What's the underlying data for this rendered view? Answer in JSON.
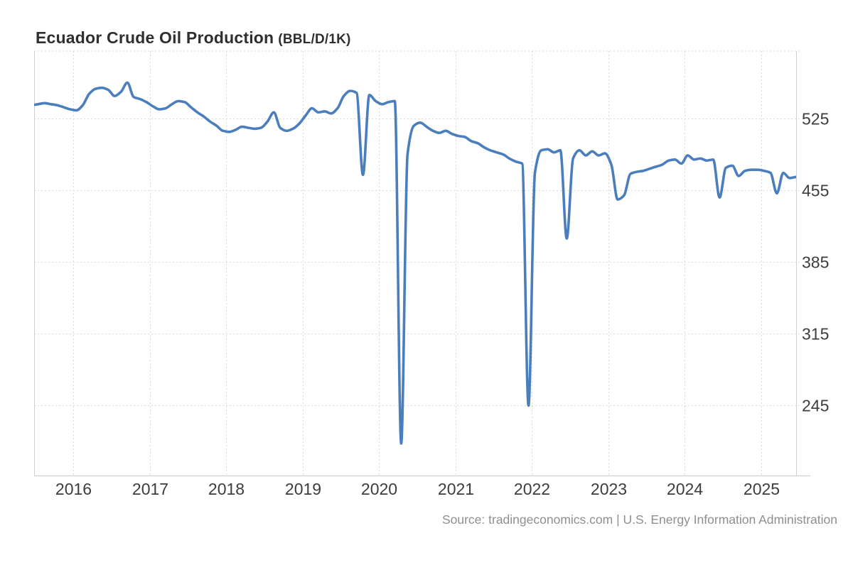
{
  "header": {
    "title": "Ecuador Crude Oil Production",
    "unit_label": "(BBL/D/1K)"
  },
  "footer": {
    "source": "Source: tradingeconomics.com | U.S. Energy Information Administration"
  },
  "colors": {
    "line": "#4a7ebd",
    "grid": "#d8d8d8",
    "axis": "#cfcfcf",
    "tick_label": "#3d3d3d",
    "title": "#2f2f2f",
    "source": "#8f8f8f",
    "background": "#ffffff"
  },
  "chart_data": {
    "type": "line",
    "title": "Ecuador Crude Oil Production",
    "unit": "BBL/D/1K",
    "frequency": "monthly",
    "start": {
      "year": 2015,
      "month": 6
    },
    "values": [
      538,
      539,
      540,
      539,
      538,
      536,
      534,
      533,
      538,
      549,
      554,
      555,
      553,
      547,
      551,
      560,
      546,
      544,
      541,
      537,
      534,
      535,
      539,
      542,
      541,
      536,
      531,
      527,
      522,
      518,
      513,
      512,
      514,
      517,
      516,
      515,
      516,
      522,
      531,
      516,
      513,
      515,
      520,
      528,
      535,
      531,
      532,
      530,
      535,
      547,
      552,
      550,
      470,
      548,
      542,
      539,
      541,
      542,
      208,
      490,
      518,
      521,
      517,
      513,
      511,
      513,
      510,
      508,
      507,
      503,
      501,
      497,
      494,
      492,
      490,
      486,
      483,
      481,
      245,
      472,
      494,
      495,
      492,
      494,
      408,
      486,
      494,
      489,
      493,
      489,
      491,
      480,
      446,
      450,
      471,
      473,
      474,
      476,
      478,
      480,
      484,
      485,
      481,
      489,
      485,
      486,
      484,
      485,
      448,
      477,
      479,
      469,
      474,
      475,
      475,
      474,
      472,
      452,
      472,
      467,
      468
    ],
    "x_ticks": [
      2016,
      2017,
      2018,
      2019,
      2020,
      2021,
      2022,
      2023,
      2024,
      2025
    ],
    "x_tick_labels": [
      "2016",
      "2017",
      "2018",
      "2019",
      "2020",
      "2021",
      "2022",
      "2023",
      "2024",
      "2025"
    ],
    "y_ticks": [
      525,
      455,
      385,
      315,
      245
    ],
    "y_tick_labels": [
      "525",
      "455",
      "385",
      "315",
      "245"
    ],
    "x_domain": [
      2015.46,
      2025.47
    ],
    "grid": "dotted",
    "legend": "none",
    "notable_points": [
      {
        "date": "2019-10",
        "value": 470
      },
      {
        "date": "2020-04",
        "value": 208
      },
      {
        "date": "2021-12",
        "value": 245
      },
      {
        "date": "2022-06",
        "value": 408
      },
      {
        "date": "2023-02",
        "value": 446
      },
      {
        "date": "2024-06",
        "value": 448
      },
      {
        "date": "2025-03",
        "value": 452
      }
    ]
  }
}
